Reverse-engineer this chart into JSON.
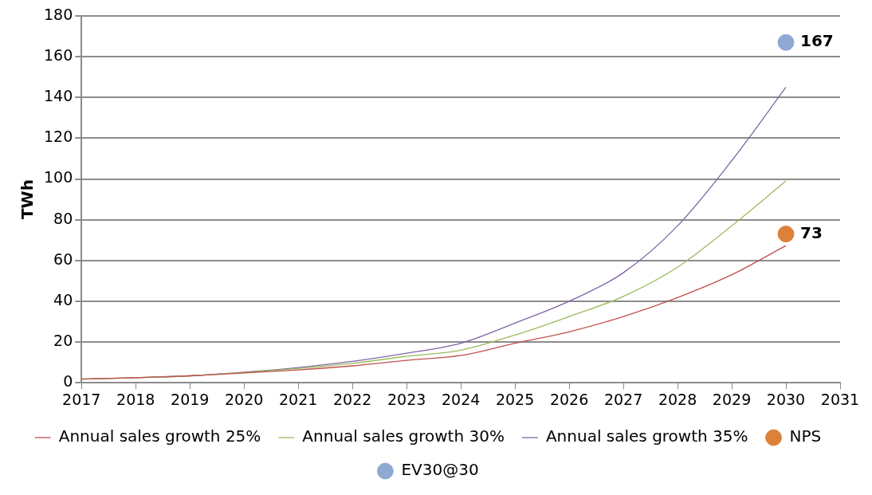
{
  "chart_data": {
    "type": "line",
    "ylabel": "TWh",
    "x": [
      2017,
      2018,
      2019,
      2020,
      2021,
      2022,
      2023,
      2024,
      2025,
      2026,
      2027,
      2028,
      2029,
      2030
    ],
    "xlim": [
      2017,
      2031
    ],
    "xticks": [
      2017,
      2018,
      2019,
      2020,
      2021,
      2022,
      2023,
      2024,
      2025,
      2026,
      2027,
      2028,
      2029,
      2030,
      2031
    ],
    "ylim": [
      0,
      180
    ],
    "yticks": [
      0,
      20,
      40,
      60,
      80,
      100,
      120,
      140,
      160,
      180
    ],
    "grid": "y",
    "legend": "bottom",
    "marker": "none",
    "line_style": "solid",
    "series": [
      {
        "name": "Annual sales growth 25%",
        "color": "#c0504d",
        "values": [
          1.8,
          2.5,
          3.4,
          4.8,
          6.3,
          8.3,
          11,
          13.4,
          19.4,
          25,
          32.5,
          41.8,
          53,
          67.3
        ]
      },
      {
        "name": "Annual sales growth 30%",
        "color": "#9bbb59",
        "values": [
          1.8,
          2.5,
          3.4,
          5,
          7,
          9.5,
          13,
          16,
          23.4,
          32.5,
          42.4,
          56.7,
          77,
          99
        ]
      },
      {
        "name": "Annual sales growth 35%",
        "color": "#8064a2",
        "values": [
          1.8,
          2.5,
          3.4,
          5.2,
          7.5,
          10.5,
          14.5,
          19.4,
          29.3,
          40,
          54,
          77,
          109,
          145
        ]
      },
      {
        "name": "NPS",
        "type": "scatter",
        "color": "#dd8039",
        "marker": "circle",
        "x": [
          2030
        ],
        "values": [
          73
        ],
        "value_labels": [
          "73"
        ]
      },
      {
        "name": "EV30@30",
        "type": "scatter",
        "color": "#8eaad3",
        "marker": "circle",
        "x": [
          2030
        ],
        "values": [
          167
        ],
        "value_labels": [
          "167"
        ]
      }
    ]
  }
}
